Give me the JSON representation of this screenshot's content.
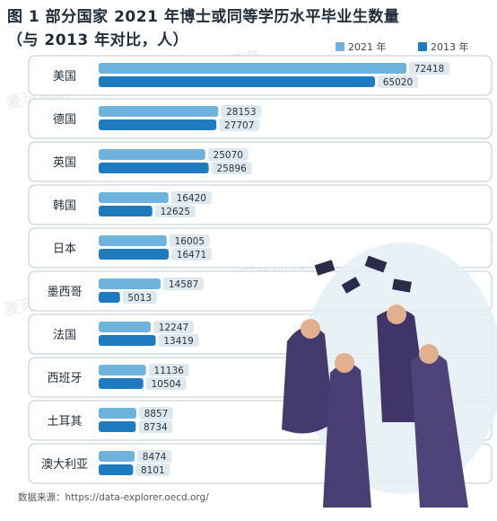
{
  "title_line1": "图 1   部分国家 2021 年博士或同等学历水平毕业生数量",
  "title_line2": "（与 2013 年对比，人）",
  "watermark": "麦可思研究",
  "source": "数据来源：https://data-explorer.oecd.org/",
  "colors": {
    "s2021": "#6db3dd",
    "s2013": "#1f7bbf",
    "label_bg": "#dde8f1",
    "card_border": "#b8c8d8"
  },
  "chart_data": {
    "type": "bar",
    "orientation": "horizontal",
    "title": "图 1   部分国家 2021 年博士或同等学历水平毕业生数量（与 2013 年对比，人）",
    "categories": [
      "美国",
      "德国",
      "英国",
      "韩国",
      "日本",
      "墨西哥",
      "法国",
      "西班牙",
      "土耳其",
      "澳大利亚"
    ],
    "series": [
      {
        "name": "2021 年",
        "values": [
          72418,
          28153,
          25070,
          16420,
          16005,
          14587,
          12247,
          11136,
          8857,
          8474
        ]
      },
      {
        "name": "2013 年",
        "values": [
          65020,
          27707,
          25896,
          12625,
          16471,
          5013,
          13419,
          10504,
          8734,
          8101
        ]
      }
    ],
    "legend": "top-right",
    "grid": false,
    "xlim": [
      0,
      72418
    ]
  }
}
